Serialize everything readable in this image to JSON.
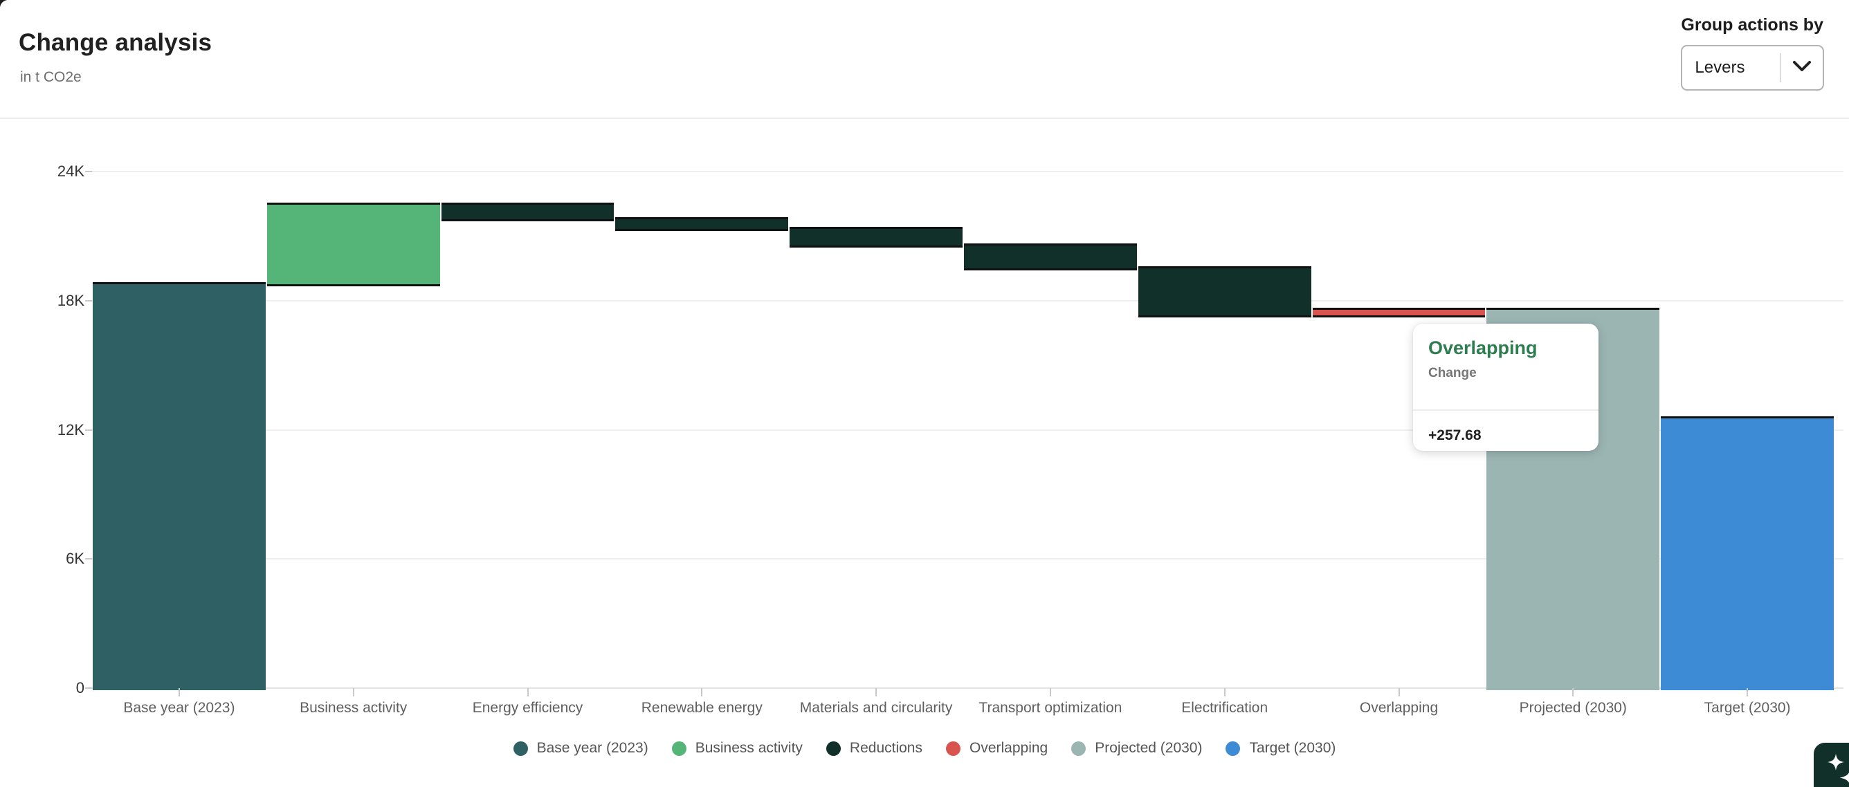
{
  "header": {
    "title": "Change analysis",
    "subtitle": "in t CO2e"
  },
  "controls": {
    "group_by_label": "Group actions by",
    "group_by_value": "Levers",
    "chevron_icon": "chevron-down"
  },
  "tooltip": {
    "title": "Overlapping",
    "subtitle": "Change",
    "value": "+257.68"
  },
  "ai_button": {
    "icon": "sparkles-icon"
  },
  "chart_data": {
    "type": "bar",
    "subtype": "waterfall",
    "title": "Change analysis",
    "unit": "t CO2e",
    "ylim": [
      0,
      24000
    ],
    "grid": true,
    "legend_position": "bottom",
    "y_ticks": [
      {
        "value": 0,
        "label": "0"
      },
      {
        "value": 6000,
        "label": "6K"
      },
      {
        "value": 12000,
        "label": "12K"
      },
      {
        "value": 18000,
        "label": "18K"
      },
      {
        "value": 24000,
        "label": "24K"
      }
    ],
    "categories": [
      "Base year (2023)",
      "Business activity",
      "Energy efficiency",
      "Renewable energy",
      "Materials and circularity",
      "Transport optimization",
      "Electrification",
      "Overlapping",
      "Projected (2030)",
      "Target (2030)"
    ],
    "bars": [
      {
        "category": "Base year (2023)",
        "series": "base",
        "start": 0,
        "end": 18860,
        "change": 18860
      },
      {
        "category": "Business activity",
        "series": "business",
        "start": 18860,
        "end": 22560,
        "change": 3700
      },
      {
        "category": "Energy efficiency",
        "series": "reductions",
        "start": 22560,
        "end": 21880,
        "change": -680
      },
      {
        "category": "Renewable energy",
        "series": "reductions",
        "start": 21880,
        "end": 21430,
        "change": -450
      },
      {
        "category": "Materials and circularity",
        "series": "reductions",
        "start": 21430,
        "end": 20660,
        "change": -770
      },
      {
        "category": "Transport optimization",
        "series": "reductions",
        "start": 20660,
        "end": 19600,
        "change": -1060
      },
      {
        "category": "Electrification",
        "series": "reductions",
        "start": 19600,
        "end": 17412.32,
        "change": -2187.68
      },
      {
        "category": "Overlapping",
        "series": "overlapping",
        "start": 17412.32,
        "end": 17670,
        "change": 257.68
      },
      {
        "category": "Projected (2030)",
        "series": "projected",
        "start": 0,
        "end": 17670,
        "change": 17670
      },
      {
        "category": "Target (2030)",
        "series": "target",
        "start": 0,
        "end": 12620,
        "change": 12620
      }
    ],
    "series_colors": {
      "base": "#2F6164",
      "business": "#55B578",
      "reductions": "#12302A",
      "overlapping": "#D9534F",
      "projected": "#9BB5B2",
      "target": "#3E8BD5"
    },
    "legend": [
      {
        "label": "Base year (2023)",
        "color": "#2F6164"
      },
      {
        "label": "Business activity",
        "color": "#55B578"
      },
      {
        "label": "Reductions",
        "color": "#12302A"
      },
      {
        "label": "Overlapping",
        "color": "#D9534F"
      },
      {
        "label": "Projected (2030)",
        "color": "#9BB5B2"
      },
      {
        "label": "Target (2030)",
        "color": "#3E8BD5"
      }
    ]
  }
}
